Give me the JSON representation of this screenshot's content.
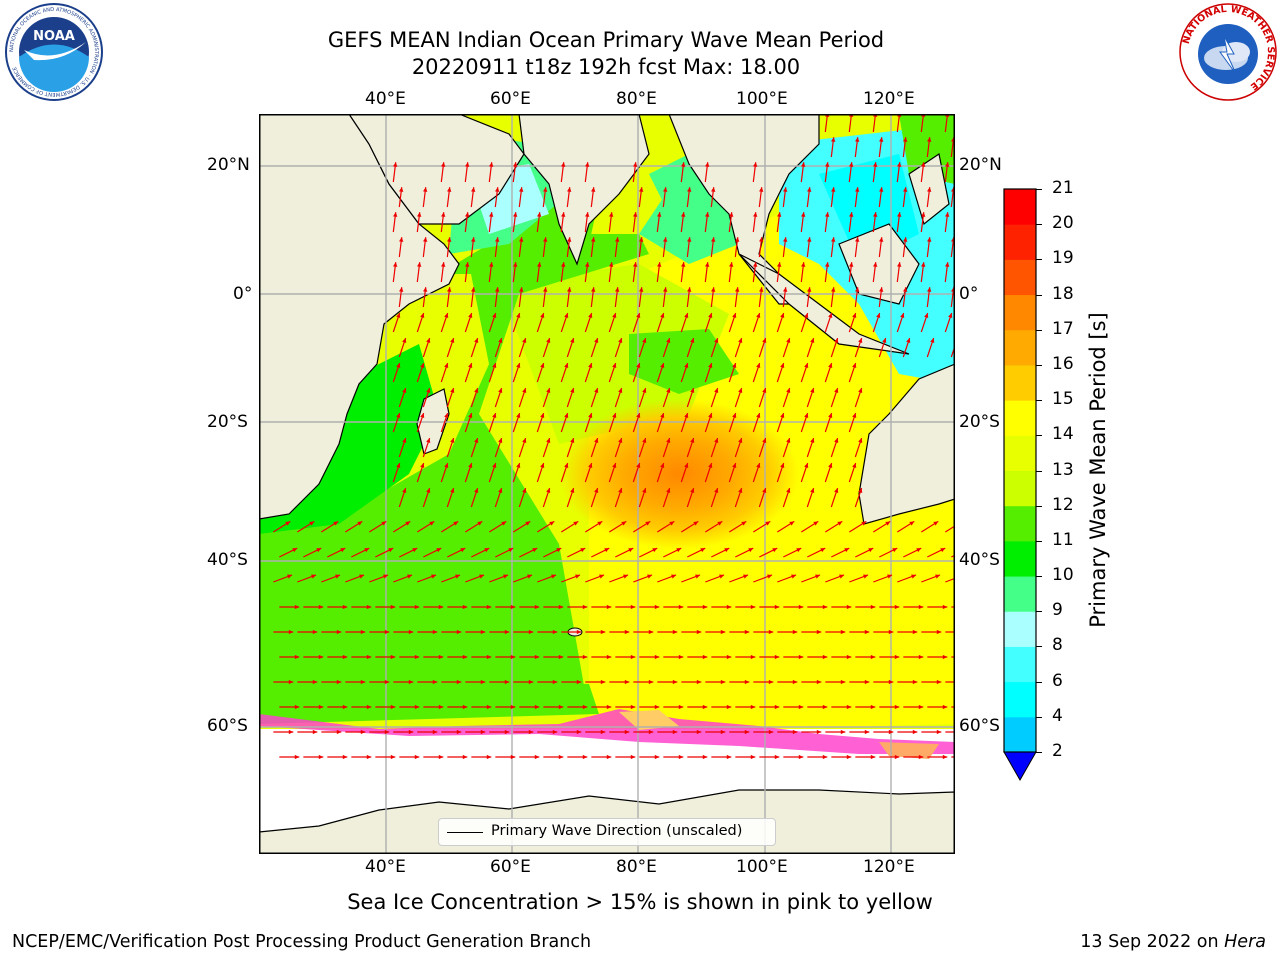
{
  "title": {
    "line1": "GEFS MEAN Indian Ocean Primary Wave Mean Period",
    "line2": "20220911 t18z 192h fcst   Max: 18.00"
  },
  "axes": {
    "lon_labels": [
      "40°E",
      "60°E",
      "80°E",
      "100°E",
      "120°E"
    ],
    "lat_labels": [
      "20°N",
      "0°",
      "20°S",
      "40°S",
      "60°S"
    ]
  },
  "legend": {
    "label": "Primary Wave Direction (unscaled)"
  },
  "colorbar": {
    "label": "Primary Wave Mean Period [s]",
    "ticks": [
      "2",
      "4",
      "6",
      "8",
      "9",
      "10",
      "11",
      "12",
      "13",
      "14",
      "15",
      "16",
      "17",
      "18",
      "19",
      "20",
      "21"
    ],
    "colors": [
      "#0044ff",
      "#00ccff",
      "#00ffff",
      "#44ffff",
      "#aaffff",
      "#44ff88",
      "#00ee00",
      "#55ee00",
      "#ccff00",
      "#e8ff00",
      "#ffff00",
      "#ffcc00",
      "#ffaa00",
      "#ff8800",
      "#ff5500",
      "#ff2200",
      "#ff0000"
    ],
    "under_color": "#0000ff"
  },
  "caption": "Sea Ice Concentration > 15% is shown in pink to yellow",
  "footer": {
    "credit": "NCEP/EMC/Verification Post Processing Product Generation Branch",
    "date_prefix": "13 Sep 2022 on ",
    "host": "Hera"
  },
  "logos": {
    "noaa": {
      "text": "NOAA",
      "ring_text": "NATIONAL OCEANIC AND ATMOSPHERIC ADMINISTRATION · U.S. DEPARTMENT OF COMMERCE"
    },
    "nws": {
      "ring_text": "NATIONAL WEATHER SERVICE"
    }
  }
}
